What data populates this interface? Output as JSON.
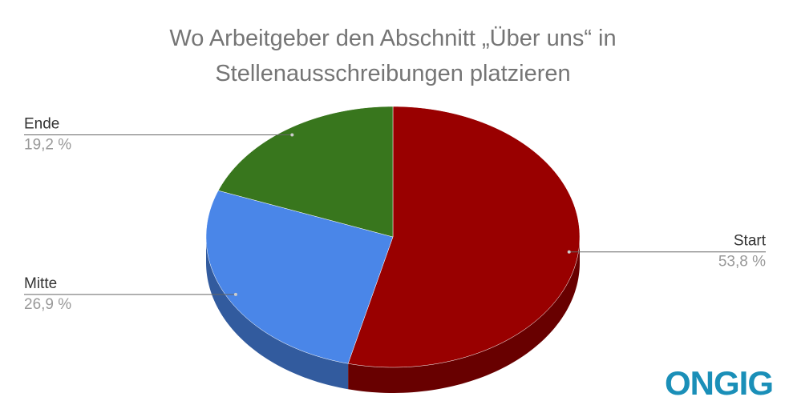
{
  "chart_data": {
    "type": "pie",
    "title": "Wo Arbeitgeber den Abschnitt „Über uns“ in Stellenausschreibungen platzieren",
    "categories": [
      "Start",
      "Mitte",
      "Ende"
    ],
    "values": [
      53.8,
      26.9,
      19.2
    ],
    "value_labels": [
      "53,8 %",
      "26,9 %",
      "19,2 %"
    ],
    "colors": [
      "#990000",
      "#4a86e8",
      "#38761d"
    ],
    "three_d": true
  },
  "logo": "ONGIG"
}
